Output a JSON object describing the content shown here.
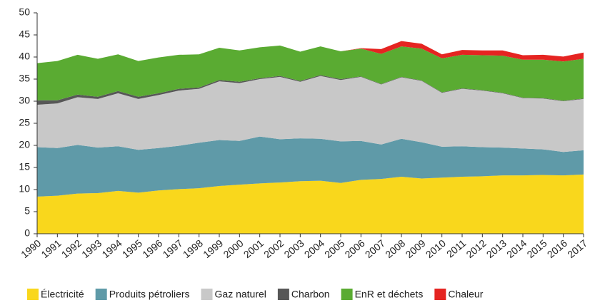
{
  "chart_data": {
    "type": "stacked_area",
    "categories": [
      "1990",
      "1991",
      "1992",
      "1993",
      "1994",
      "1995",
      "1996",
      "1997",
      "1998",
      "1999",
      "2000",
      "2001",
      "2002",
      "2003",
      "2004",
      "2005",
      "2006",
      "2007",
      "2008",
      "2009",
      "2010",
      "2011",
      "2012",
      "2013",
      "2014",
      "2015",
      "2016",
      "2017"
    ],
    "series": [
      {
        "name": "Électricité",
        "color": "#f9d71c",
        "values": [
          8.4,
          8.6,
          9.1,
          9.2,
          9.7,
          9.3,
          9.8,
          10.1,
          10.3,
          10.8,
          11.1,
          11.4,
          11.6,
          11.9,
          12.0,
          11.5,
          12.2,
          12.4,
          12.9,
          12.5,
          12.7,
          12.9,
          13.0,
          13.2,
          13.2,
          13.3,
          13.2,
          13.4
        ]
      },
      {
        "name": "Produits pétroliers",
        "color": "#5f9aa8",
        "values": [
          11.2,
          10.8,
          11.0,
          10.3,
          10.1,
          9.7,
          9.6,
          9.8,
          10.3,
          10.4,
          9.9,
          10.6,
          9.8,
          9.7,
          9.5,
          9.4,
          8.8,
          7.8,
          8.6,
          8.2,
          7.0,
          6.9,
          6.6,
          6.3,
          6.1,
          5.8,
          5.3,
          5.5
        ]
      },
      {
        "name": "Gaz naturel",
        "color": "#c8c8c8",
        "values": [
          9.6,
          10.1,
          10.8,
          11.0,
          12.0,
          11.5,
          12.0,
          12.5,
          12.2,
          13.3,
          13.1,
          13.0,
          14.1,
          12.8,
          14.2,
          13.9,
          14.5,
          13.6,
          13.9,
          13.9,
          12.2,
          13.0,
          12.8,
          12.3,
          11.4,
          11.5,
          11.5,
          11.6
        ]
      },
      {
        "name": "Charbon",
        "color": "#575757",
        "values": [
          1.0,
          0.7,
          0.6,
          0.5,
          0.5,
          0.5,
          0.4,
          0.4,
          0.3,
          0.3,
          0.3,
          0.2,
          0.2,
          0.2,
          0.2,
          0.2,
          0.1,
          0.1,
          0.1,
          0.1,
          0.1,
          0.1,
          0.1,
          0.1,
          0.1,
          0.1,
          0.1,
          0.1
        ]
      },
      {
        "name": "EnR et déchets",
        "color": "#5aab32",
        "values": [
          8.4,
          8.9,
          9.0,
          8.6,
          8.3,
          8.1,
          8.1,
          7.7,
          7.5,
          7.3,
          7.1,
          7.0,
          6.9,
          6.6,
          6.5,
          6.3,
          6.3,
          6.8,
          6.9,
          7.2,
          7.7,
          7.6,
          7.9,
          8.4,
          8.6,
          8.7,
          8.9,
          9.0
        ]
      },
      {
        "name": "Chaleur",
        "color": "#e52421",
        "values": [
          0,
          0,
          0,
          0,
          0,
          0,
          0,
          0,
          0,
          0,
          0,
          0,
          0,
          0,
          0,
          0,
          0.1,
          1.1,
          1.2,
          1.1,
          0.9,
          1.1,
          1.1,
          1.2,
          1.0,
          1.1,
          1.1,
          1.4
        ]
      }
    ],
    "ylim": [
      0,
      50
    ],
    "yticks": [
      0,
      5,
      10,
      15,
      20,
      25,
      30,
      35,
      40,
      45,
      50
    ],
    "grid": false,
    "legend": "bottom"
  }
}
